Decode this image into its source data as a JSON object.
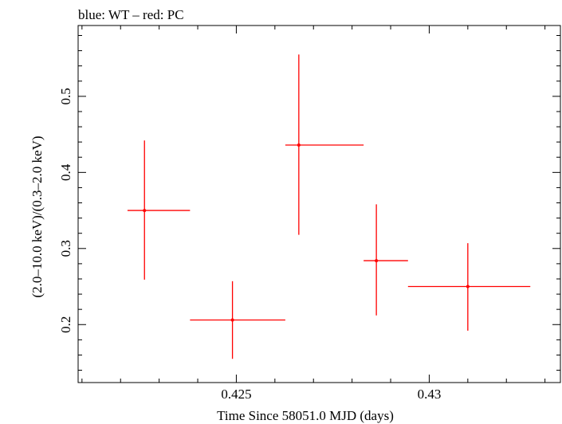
{
  "chart_data": {
    "type": "scatter",
    "title": "blue: WT – red: PC",
    "xlabel": "Time Since 58051.0 MJD (days)",
    "ylabel": "(2.0–10.0 keV)/(0.3–2.0 keV)",
    "xlim": [
      0.4209,
      0.4334
    ],
    "ylim": [
      0.1238,
      0.5931
    ],
    "x_ticks": [
      {
        "value": 0.425,
        "label": "0.425"
      },
      {
        "value": 0.43,
        "label": "0.43"
      }
    ],
    "y_ticks": [
      {
        "value": 0.2,
        "label": "0.2"
      },
      {
        "value": 0.3,
        "label": "0.3"
      },
      {
        "value": 0.4,
        "label": "0.4"
      },
      {
        "value": 0.5,
        "label": "0.5"
      }
    ],
    "grid": false,
    "series": [
      {
        "color": "#ff0000",
        "points": [
          {
            "x": 0.42262,
            "xerr_lo": 0.42218,
            "xerr_hi": 0.4238,
            "y": 0.35,
            "yerr_lo": 0.259,
            "yerr_hi": 0.442
          },
          {
            "x": 0.4249,
            "xerr_lo": 0.4238,
            "xerr_hi": 0.42627,
            "y": 0.206,
            "yerr_lo": 0.155,
            "yerr_hi": 0.257
          },
          {
            "x": 0.42662,
            "xerr_lo": 0.42627,
            "xerr_hi": 0.4283,
            "y": 0.436,
            "yerr_lo": 0.318,
            "yerr_hi": 0.555
          },
          {
            "x": 0.42863,
            "xerr_lo": 0.4283,
            "xerr_hi": 0.42945,
            "y": 0.284,
            "yerr_lo": 0.212,
            "yerr_hi": 0.358
          },
          {
            "x": 0.431,
            "xerr_lo": 0.42945,
            "xerr_hi": 0.43262,
            "y": 0.25,
            "yerr_lo": 0.192,
            "yerr_hi": 0.307
          }
        ]
      }
    ]
  }
}
